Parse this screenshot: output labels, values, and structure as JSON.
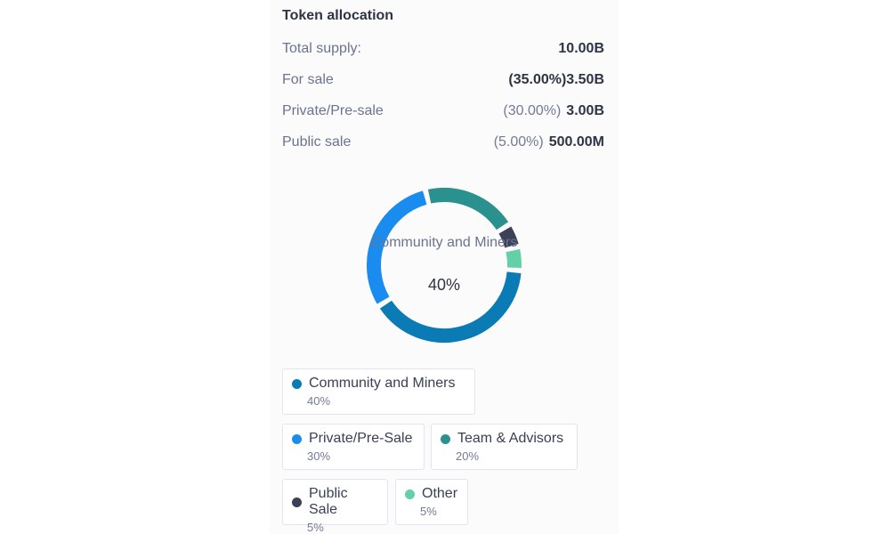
{
  "allocation": {
    "title": "Token allocation",
    "rows": [
      {
        "label": "Total supply:",
        "pct": "",
        "amount": "10.00B"
      },
      {
        "label": "For sale",
        "pct": "(35.00%)",
        "amount": "3.50B"
      },
      {
        "label": "Private/Pre-sale",
        "pct": "(30.00%)",
        "amount": "3.00B"
      },
      {
        "label": "Public sale",
        "pct": "(5.00%)",
        "amount": "500.00M"
      }
    ]
  },
  "chart_data": {
    "type": "pie",
    "donut": true,
    "center_label": "Community and Miners",
    "center_value": "40%",
    "categories": [
      "Community and Miners",
      "Private/Pre-Sale",
      "Team & Advisors",
      "Public Sale",
      "Other"
    ],
    "values": [
      40,
      30,
      20,
      5,
      5
    ],
    "value_labels": [
      "40%",
      "30%",
      "20%",
      "5%",
      "5%"
    ],
    "colors": [
      "#0a7bb5",
      "#1a8cf0",
      "#2a918f",
      "#3b4157",
      "#63d0a7"
    ],
    "legend_position": "bottom"
  },
  "colors": {
    "community": "#0a7bb5",
    "private": "#1a8cf0",
    "team": "#2a918f",
    "public": "#3b4157",
    "other": "#63d0a7"
  }
}
